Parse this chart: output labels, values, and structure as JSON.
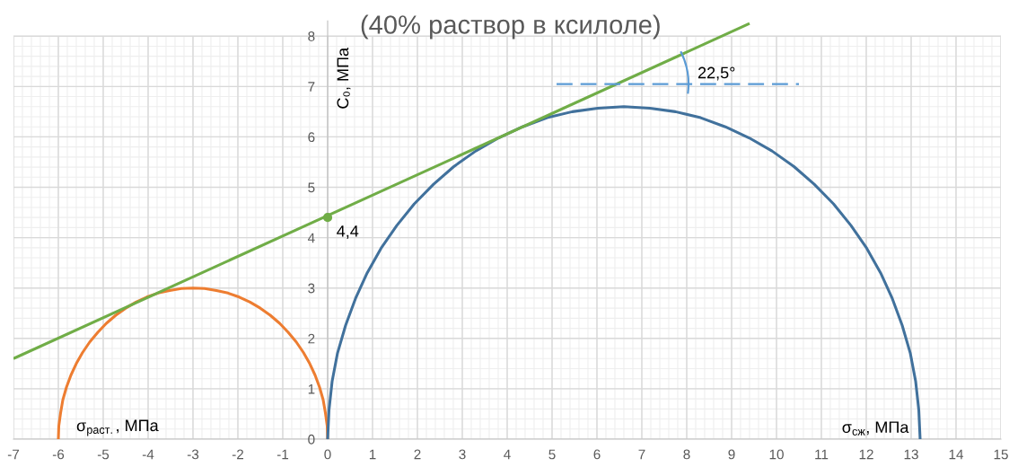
{
  "chart_data": {
    "type": "line",
    "title": "(40% раствор в ксилоле)",
    "xlabel": "σ$_{сж}$, МПа",
    "ylabel": "C₀, МПа",
    "annotations": [
      "σ$_{раст.}$, МПа",
      "22,5°"
    ],
    "xlim": [
      -7,
      15
    ],
    "ylim": [
      0,
      8.3
    ],
    "xticks": [
      -7,
      -6,
      -5,
      -4,
      -3,
      -2,
      -1,
      0,
      1,
      2,
      3,
      4,
      5,
      6,
      7,
      8,
      9,
      10,
      11,
      12,
      13,
      14,
      15
    ],
    "yticks": [
      0,
      1,
      2,
      3,
      4,
      5,
      6,
      7,
      8
    ],
    "grid": true,
    "series": [
      {
        "color": "#ed7d31",
        "x": [
          -6,
          -5.99,
          -5.95,
          -5.9,
          -5.82,
          -5.72,
          -5.6,
          -5.46,
          -5.3,
          -5.12,
          -4.93,
          -4.72,
          -4.5,
          -4.27,
          -4.03,
          -3.78,
          -3.52,
          -3.26,
          -3,
          -2.74,
          -2.48,
          -2.22,
          -1.97,
          -1.73,
          -1.5,
          -1.28,
          -1.07,
          -0.88,
          -0.7,
          -0.54,
          -0.4,
          -0.28,
          -0.18,
          -0.1,
          -0.05,
          -0.01,
          0
        ],
        "values": [
          0,
          0.26,
          0.52,
          0.78,
          1.03,
          1.27,
          1.5,
          1.72,
          1.93,
          2.12,
          2.3,
          2.46,
          2.6,
          2.72,
          2.82,
          2.9,
          2.95,
          2.99,
          3,
          2.99,
          2.95,
          2.9,
          2.82,
          2.72,
          2.6,
          2.46,
          2.3,
          2.12,
          1.93,
          1.72,
          1.5,
          1.27,
          1.03,
          0.78,
          0.52,
          0.26,
          0
        ]
      },
      {
        "color": "#41719c",
        "x": [
          0,
          0.03,
          0.1,
          0.22,
          0.4,
          0.62,
          0.88,
          1.19,
          1.54,
          1.93,
          2.36,
          2.81,
          3.3,
          3.81,
          4.34,
          4.89,
          5.45,
          6.02,
          6.6,
          7.18,
          7.75,
          8.31,
          8.86,
          9.39,
          9.9,
          10.39,
          10.84,
          11.27,
          11.66,
          12.01,
          12.32,
          12.58,
          12.8,
          12.98,
          13.1,
          13.17,
          13.2
        ],
        "values": [
          0,
          0.58,
          1.15,
          1.71,
          2.26,
          2.79,
          3.3,
          3.79,
          4.24,
          4.67,
          5.06,
          5.41,
          5.72,
          5.98,
          6.2,
          6.38,
          6.5,
          6.57,
          6.6,
          6.57,
          6.5,
          6.38,
          6.2,
          5.98,
          5.72,
          5.41,
          5.06,
          4.67,
          4.24,
          3.79,
          3.3,
          2.79,
          2.26,
          1.71,
          1.15,
          0.58,
          0
        ]
      },
      {
        "color": "#70ad47",
        "x": [
          -7,
          9.4
        ],
        "values": [
          1.6,
          8.25
        ]
      },
      {
        "color": "#5b9bd5",
        "line_style": "dashed",
        "x": [
          5.1,
          10.5
        ],
        "values": [
          7.05,
          7.05
        ]
      },
      {
        "type": "scatter",
        "color": "#70ad47",
        "marker": "circle",
        "x": [
          0
        ],
        "values": [
          4.4
        ],
        "value_labels": [
          "4,4"
        ]
      }
    ]
  }
}
